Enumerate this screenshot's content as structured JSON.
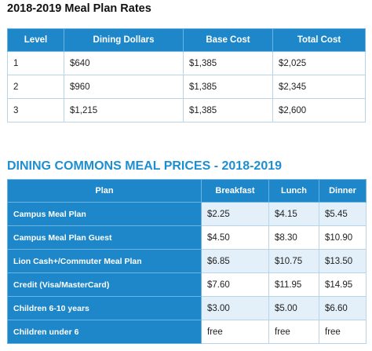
{
  "rates": {
    "title": "2018-2019 Meal Plan Rates",
    "headers": [
      "Level",
      "Dining Dollars",
      "Base Cost",
      "Total Cost"
    ],
    "rows": [
      [
        "1",
        "$640",
        "$1,385",
        "$2,025"
      ],
      [
        "2",
        "$960",
        "$1,385",
        "$2,345"
      ],
      [
        "3",
        "$1,215",
        "$1,385",
        "$2,600"
      ]
    ]
  },
  "prices": {
    "title": "DINING COMMONS MEAL PRICES - 2018-2019",
    "headers": [
      "Plan",
      "Breakfast",
      "Lunch",
      "Dinner"
    ],
    "rows": [
      [
        "Campus Meal Plan",
        "$2.25",
        "$4.15",
        "$5.45"
      ],
      [
        "Campus Meal Plan Guest",
        "$4.50",
        "$8.30",
        "$10.90"
      ],
      [
        "Lion Cash+/Commuter Meal Plan",
        "$6.85",
        "$10.75",
        "$13.50"
      ],
      [
        "Credit (Visa/MasterCard)",
        "$7.60",
        "$11.95",
        "$14.95"
      ],
      [
        "Children 6-10 years",
        "$3.00",
        "$5.00",
        "$6.60"
      ],
      [
        "Children under 6",
        "free",
        "free",
        "free"
      ]
    ]
  },
  "colors": {
    "header_blue": "#1d87c9",
    "title_blue": "#1d8fd0",
    "shaded_row": "#e3f0f9"
  }
}
